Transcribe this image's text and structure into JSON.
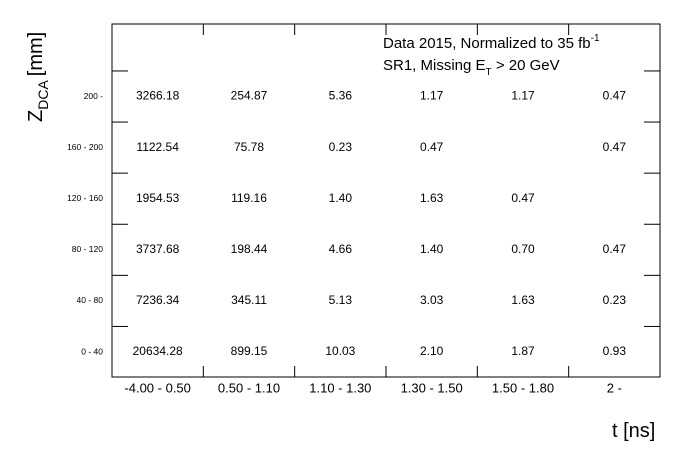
{
  "chart_data": {
    "type": "table",
    "annotation": {
      "line1_text": "Data 2015, Normalized to 35 fb",
      "line1_sup": "-1",
      "line2_pre": "SR1, Missing E",
      "line2_sub": "T",
      "line2_post": " > 20 GeV"
    },
    "xlabel": "t [ns]",
    "ylabel_main": "Z",
    "ylabel_sub": "DCA",
    "ylabel_unit": "[mm]",
    "x_categories": [
      "-4.00 - 0.50",
      "0.50 - 1.10",
      "1.10 - 1.30",
      "1.30 - 1.50",
      "1.50 - 1.80",
      "2 -"
    ],
    "y_categories": [
      "0 - 40",
      "40 - 80",
      "80 - 120",
      "120 - 160",
      "160 - 200",
      "200 -"
    ],
    "values": [
      [
        "20634.28",
        "899.15",
        "10.03",
        "2.10",
        "1.87",
        "0.93"
      ],
      [
        "7236.34",
        "345.11",
        "5.13",
        "3.03",
        "1.63",
        "0.23"
      ],
      [
        "3737.68",
        "198.44",
        "4.66",
        "1.40",
        "0.70",
        "0.47"
      ],
      [
        "1954.53",
        "119.16",
        "1.40",
        "1.63",
        "0.47",
        ""
      ],
      [
        "1122.54",
        "75.78",
        "0.23",
        "0.47",
        "",
        "0.47"
      ],
      [
        "3266.18",
        "254.87",
        "5.36",
        "1.17",
        "1.17",
        "0.47"
      ]
    ]
  }
}
